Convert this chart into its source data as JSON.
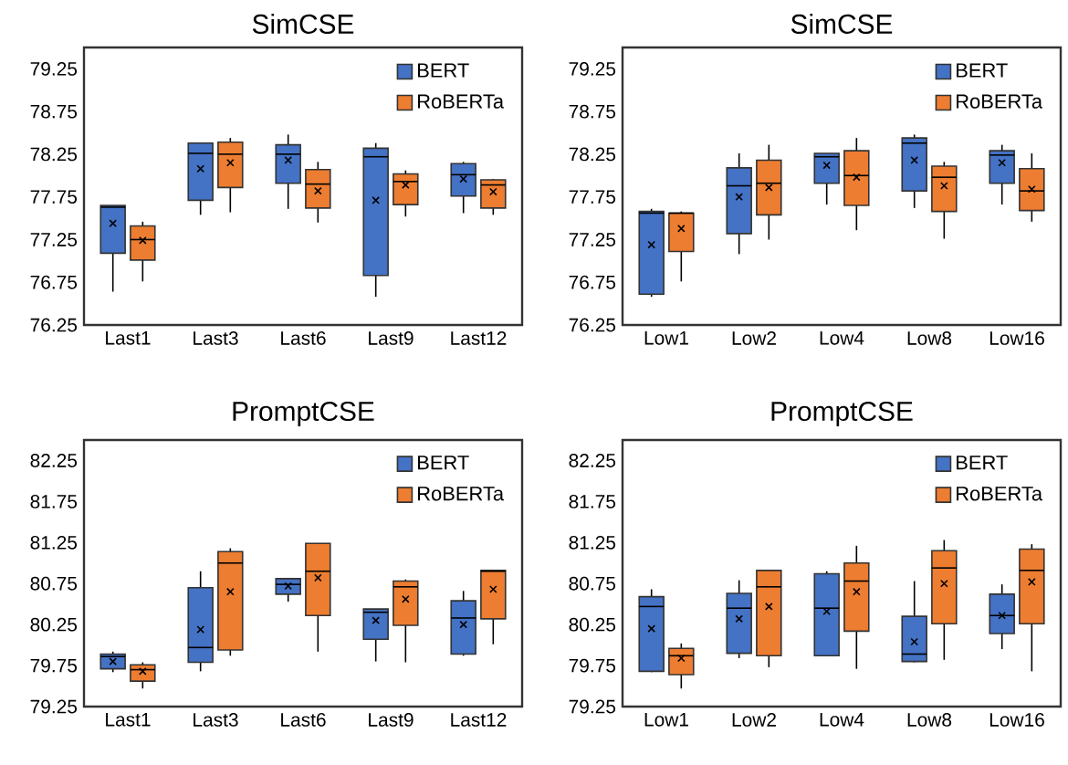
{
  "chart_data": [
    {
      "type": "box",
      "title": "SimCSE",
      "categories": [
        "Last1",
        "Last3",
        "Last6",
        "Last9",
        "Last12"
      ],
      "ylim": [
        76.25,
        79.5
      ],
      "yticks": [
        76.25,
        76.75,
        77.25,
        77.75,
        78.25,
        78.75,
        79.25
      ],
      "legend": "top right",
      "series": [
        {
          "name": "BERT",
          "color": "#4472c4",
          "boxes": [
            {
              "low": 76.64,
              "q1": 77.09,
              "median": 77.63,
              "q3": 77.65,
              "high": 77.65,
              "mean": 77.44
            },
            {
              "low": 77.54,
              "q1": 77.71,
              "median": 78.26,
              "q3": 78.38,
              "high": 78.38,
              "mean": 78.08
            },
            {
              "low": 77.61,
              "q1": 77.91,
              "median": 78.25,
              "q3": 78.36,
              "high": 78.48,
              "mean": 78.18
            },
            {
              "low": 76.58,
              "q1": 76.83,
              "median": 78.22,
              "q3": 78.32,
              "high": 78.38,
              "mean": 77.71
            },
            {
              "low": 77.56,
              "q1": 77.76,
              "median": 78.01,
              "q3": 78.14,
              "high": 78.16,
              "mean": 77.96
            }
          ]
        },
        {
          "name": "RoBERTa",
          "color": "#ed7d31",
          "boxes": [
            {
              "low": 76.76,
              "q1": 77.01,
              "median": 77.25,
              "q3": 77.41,
              "high": 77.46,
              "mean": 77.24
            },
            {
              "low": 77.57,
              "q1": 77.86,
              "median": 78.25,
              "q3": 78.39,
              "high": 78.44,
              "mean": 78.15
            },
            {
              "low": 77.45,
              "q1": 77.62,
              "median": 77.9,
              "q3": 78.07,
              "high": 78.16,
              "mean": 77.82
            },
            {
              "low": 77.52,
              "q1": 77.66,
              "median": 77.93,
              "q3": 78.02,
              "high": 78.06,
              "mean": 77.89
            },
            {
              "low": 77.54,
              "q1": 77.62,
              "median": 77.89,
              "q3": 77.95,
              "high": 77.96,
              "mean": 77.81
            }
          ]
        }
      ]
    },
    {
      "type": "box",
      "title": "SimCSE",
      "categories": [
        "Low1",
        "Low2",
        "Low4",
        "Low8",
        "Low16"
      ],
      "ylim": [
        76.25,
        79.5
      ],
      "yticks": [
        76.25,
        76.75,
        77.25,
        77.75,
        78.25,
        78.75,
        79.25
      ],
      "legend": "top right",
      "series": [
        {
          "name": "BERT",
          "color": "#4472c4",
          "boxes": [
            {
              "low": 76.58,
              "q1": 76.61,
              "median": 77.56,
              "q3": 77.58,
              "high": 77.61,
              "mean": 77.19
            },
            {
              "low": 77.08,
              "q1": 77.32,
              "median": 77.88,
              "q3": 78.09,
              "high": 78.26,
              "mean": 77.75
            },
            {
              "low": 77.66,
              "q1": 77.91,
              "median": 78.22,
              "q3": 78.26,
              "high": 78.26,
              "mean": 78.12
            },
            {
              "low": 77.62,
              "q1": 77.82,
              "median": 78.38,
              "q3": 78.44,
              "high": 78.48,
              "mean": 78.18
            },
            {
              "low": 77.66,
              "q1": 77.91,
              "median": 78.24,
              "q3": 78.29,
              "high": 78.36,
              "mean": 78.15
            }
          ]
        },
        {
          "name": "RoBERTa",
          "color": "#ed7d31",
          "boxes": [
            {
              "low": 76.76,
              "q1": 77.11,
              "median": 77.56,
              "q3": 77.56,
              "high": 77.58,
              "mean": 77.38
            },
            {
              "low": 77.25,
              "q1": 77.54,
              "median": 77.91,
              "q3": 78.18,
              "high": 78.36,
              "mean": 77.86
            },
            {
              "low": 77.36,
              "q1": 77.65,
              "median": 78.0,
              "q3": 78.29,
              "high": 78.44,
              "mean": 77.98
            },
            {
              "low": 77.26,
              "q1": 77.58,
              "median": 77.98,
              "q3": 78.11,
              "high": 78.16,
              "mean": 77.88
            },
            {
              "low": 77.46,
              "q1": 77.59,
              "median": 77.82,
              "q3": 78.08,
              "high": 78.26,
              "mean": 77.84
            }
          ]
        }
      ]
    },
    {
      "type": "box",
      "title": "PromptCSE",
      "categories": [
        "Last1",
        "Last3",
        "Last6",
        "Last9",
        "Last12"
      ],
      "ylim": [
        79.25,
        82.5
      ],
      "yticks": [
        79.25,
        79.75,
        80.25,
        80.75,
        81.25,
        81.75,
        82.25
      ],
      "legend": "top right",
      "series": [
        {
          "name": "BERT",
          "color": "#4472c4",
          "boxes": [
            {
              "low": 79.67,
              "q1": 79.71,
              "median": 79.86,
              "q3": 79.89,
              "high": 79.92,
              "mean": 79.8
            },
            {
              "low": 79.68,
              "q1": 79.79,
              "median": 79.97,
              "q3": 80.7,
              "high": 80.9,
              "mean": 80.19
            },
            {
              "low": 80.53,
              "q1": 80.62,
              "median": 80.74,
              "q3": 80.81,
              "high": 80.81,
              "mean": 80.72
            },
            {
              "low": 79.8,
              "q1": 80.07,
              "median": 80.4,
              "q3": 80.44,
              "high": 80.44,
              "mean": 80.3
            },
            {
              "low": 79.87,
              "q1": 79.89,
              "median": 80.33,
              "q3": 80.54,
              "high": 80.66,
              "mean": 80.25
            }
          ]
        },
        {
          "name": "RoBERTa",
          "color": "#ed7d31",
          "boxes": [
            {
              "low": 79.47,
              "q1": 79.56,
              "median": 79.7,
              "q3": 79.76,
              "high": 79.79,
              "mean": 79.68
            },
            {
              "low": 79.87,
              "q1": 79.94,
              "median": 81.0,
              "q3": 81.14,
              "high": 81.18,
              "mean": 80.65
            },
            {
              "low": 79.92,
              "q1": 80.36,
              "median": 80.9,
              "q3": 81.24,
              "high": 81.24,
              "mean": 80.82
            },
            {
              "low": 79.79,
              "q1": 80.24,
              "median": 80.71,
              "q3": 80.78,
              "high": 80.8,
              "mean": 80.56
            },
            {
              "low": 80.01,
              "q1": 80.32,
              "median": 80.9,
              "q3": 80.91,
              "high": 80.91,
              "mean": 80.68
            }
          ]
        }
      ]
    },
    {
      "type": "box",
      "title": "PromptCSE",
      "categories": [
        "Low1",
        "Low2",
        "Low4",
        "Low8",
        "Low16"
      ],
      "ylim": [
        79.25,
        82.5
      ],
      "yticks": [
        79.25,
        79.75,
        80.25,
        80.75,
        81.25,
        81.75,
        82.25
      ],
      "legend": "top right",
      "series": [
        {
          "name": "BERT",
          "color": "#4472c4",
          "boxes": [
            {
              "low": 79.67,
              "q1": 79.68,
              "median": 80.47,
              "q3": 80.59,
              "high": 80.68,
              "mean": 80.2
            },
            {
              "low": 79.84,
              "q1": 79.9,
              "median": 80.45,
              "q3": 80.63,
              "high": 80.79,
              "mean": 80.32
            },
            {
              "low": 79.87,
              "q1": 79.87,
              "median": 80.45,
              "q3": 80.87,
              "high": 80.9,
              "mean": 80.41
            },
            {
              "low": 79.79,
              "q1": 79.8,
              "median": 79.89,
              "q3": 80.35,
              "high": 80.78,
              "mean": 80.04
            },
            {
              "low": 79.95,
              "q1": 80.14,
              "median": 80.36,
              "q3": 80.62,
              "high": 80.74,
              "mean": 80.36
            }
          ]
        },
        {
          "name": "RoBERTa",
          "color": "#ed7d31",
          "boxes": [
            {
              "low": 79.47,
              "q1": 79.64,
              "median": 79.87,
              "q3": 79.96,
              "high": 80.02,
              "mean": 79.84
            },
            {
              "low": 79.73,
              "q1": 79.87,
              "median": 80.71,
              "q3": 80.91,
              "high": 80.91,
              "mean": 80.47
            },
            {
              "low": 79.71,
              "q1": 80.17,
              "median": 80.78,
              "q3": 81.0,
              "high": 81.21,
              "mean": 80.65
            },
            {
              "low": 79.82,
              "q1": 80.26,
              "median": 80.94,
              "q3": 81.15,
              "high": 81.28,
              "mean": 80.75
            },
            {
              "low": 79.68,
              "q1": 80.26,
              "median": 80.91,
              "q3": 81.17,
              "high": 81.23,
              "mean": 80.77
            }
          ]
        }
      ]
    }
  ]
}
